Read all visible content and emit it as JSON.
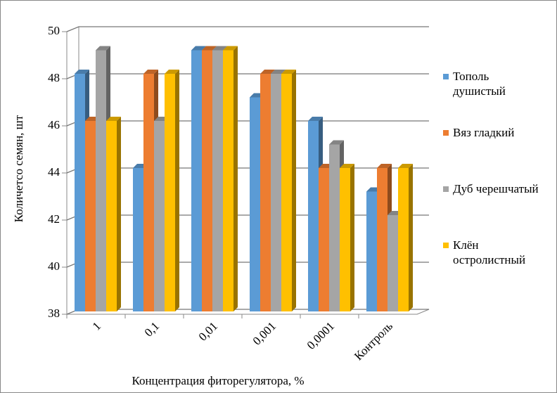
{
  "chart_data": {
    "type": "bar3d",
    "x_label": "Концентрация фиторегулятора, %",
    "y_label": "Количетсо семян, шт",
    "categories": [
      "1",
      "0,1",
      "0,01",
      "0,001",
      "0,0001",
      "Контроль"
    ],
    "series": [
      {
        "name": "Тополь душистый",
        "color": "#5b9bd5",
        "values": [
          48,
          44,
          49,
          47,
          46,
          43
        ]
      },
      {
        "name": "Вяз гладкий",
        "color": "#ed7d31",
        "values": [
          46,
          48,
          49,
          48,
          44,
          44
        ]
      },
      {
        "name": "Дуб черешчатый",
        "color": "#a5a5a5",
        "values": [
          49,
          46,
          49,
          48,
          45,
          42
        ]
      },
      {
        "name": "Клён остролистный",
        "color": "#ffc000",
        "values": [
          46,
          48,
          49,
          48,
          44,
          44
        ]
      }
    ],
    "ylim": [
      38,
      50
    ],
    "yticks": [
      38,
      40,
      42,
      44,
      46,
      48,
      50
    ],
    "grid": true,
    "legend": "right"
  }
}
